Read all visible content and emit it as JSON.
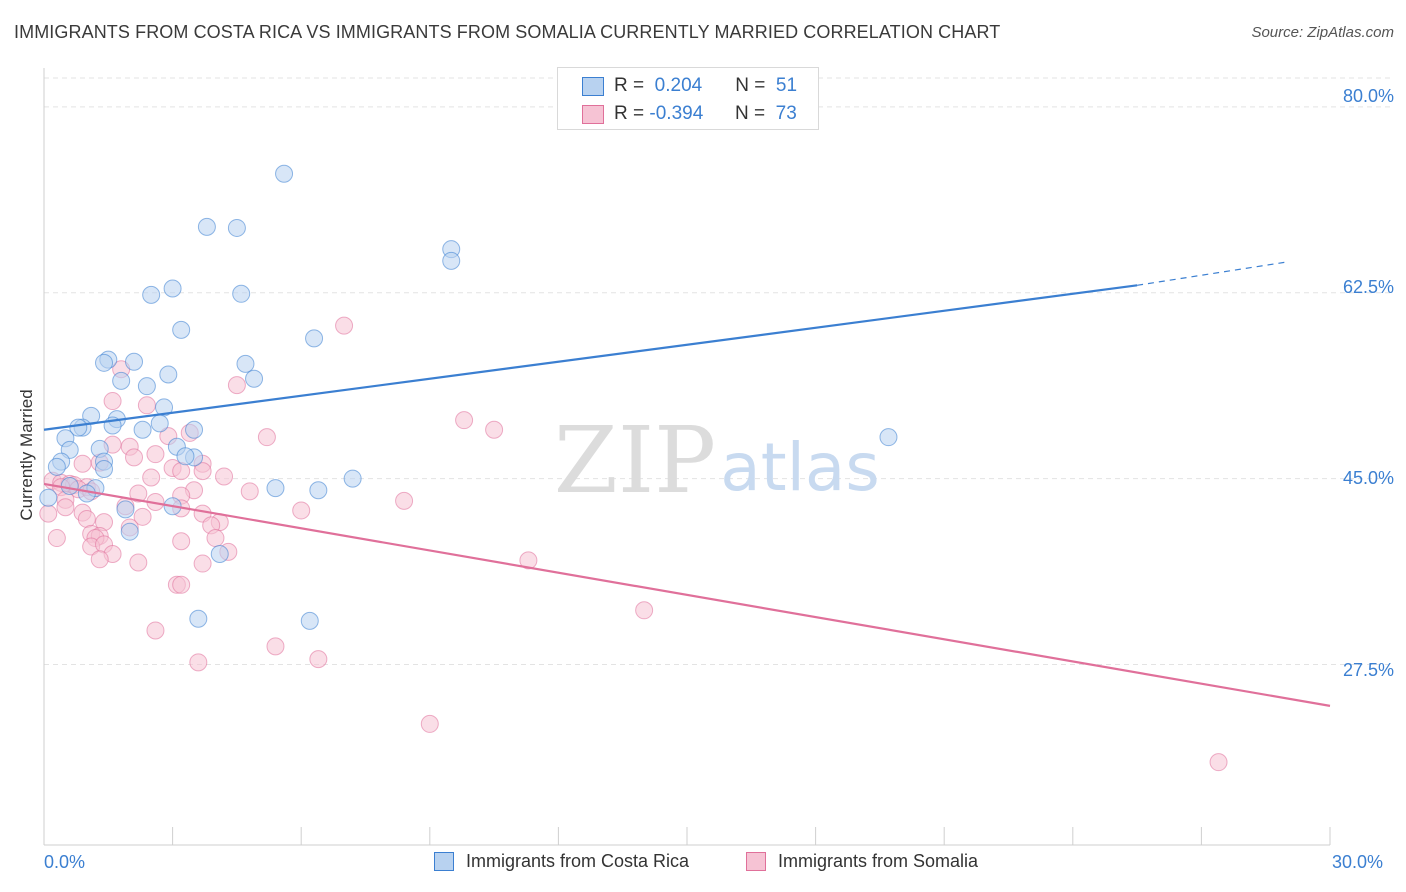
{
  "title": "IMMIGRANTS FROM COSTA RICA VS IMMIGRANTS FROM SOMALIA CURRENTLY MARRIED CORRELATION CHART",
  "source": "Source: ZipAtlas.com",
  "watermark": {
    "zip": "ZIP",
    "atlas": "atlas"
  },
  "colors": {
    "blue": "#3b7fd1",
    "blue_fill": "#b8d2f0",
    "pink": "#e0709a",
    "pink_fill": "#f6c3d4",
    "grid": "#e3e3e3",
    "axis_text": "#3b7fd1"
  },
  "legend": {
    "rows": [
      {
        "r_label": "R =",
        "r_value": "0.204",
        "n_label": "N =",
        "n_value": "51",
        "color": "blue"
      },
      {
        "r_label": "R =",
        "r_value": "-0.394",
        "n_label": "N =",
        "n_value": "73",
        "color": "pink"
      }
    ]
  },
  "bottom_legend": [
    {
      "label": "Immigrants from Costa Rica",
      "color": "blue"
    },
    {
      "label": "Immigrants from Somalia",
      "color": "pink"
    }
  ],
  "chart_data": {
    "type": "scatter",
    "xlabel": "",
    "ylabel": "Currently Married",
    "xlim": [
      0,
      30
    ],
    "ylim": [
      10.5,
      83
    ],
    "x_tick_labels": [
      "0.0%",
      "30.0%"
    ],
    "y_ticks": [
      27.5,
      45.0,
      62.5,
      80.0
    ],
    "y_tick_labels": [
      "27.5%",
      "45.0%",
      "62.5%",
      "80.0%"
    ],
    "grid": true,
    "legend_position": "top-center",
    "series": [
      {
        "name": "Immigrants from Costa Rica",
        "color": "blue",
        "trend": {
          "x": [
            0.0,
            25.5
          ],
          "y": [
            49.6,
            63.2
          ],
          "dashed_to_x": 29.0,
          "dashed_to_y": 65.4
        },
        "points": [
          [
            5.6,
            73.7
          ],
          [
            3.8,
            68.7
          ],
          [
            4.5,
            68.6
          ],
          [
            9.5,
            66.6
          ],
          [
            9.5,
            65.5
          ],
          [
            3.0,
            62.9
          ],
          [
            2.5,
            62.3
          ],
          [
            4.6,
            62.4
          ],
          [
            3.2,
            59.0
          ],
          [
            6.3,
            58.2
          ],
          [
            1.5,
            56.2
          ],
          [
            2.1,
            56.0
          ],
          [
            1.4,
            55.9
          ],
          [
            4.7,
            55.8
          ],
          [
            2.9,
            54.8
          ],
          [
            1.8,
            54.2
          ],
          [
            4.9,
            54.4
          ],
          [
            2.4,
            53.7
          ],
          [
            2.8,
            51.7
          ],
          [
            1.1,
            50.9
          ],
          [
            1.7,
            50.6
          ],
          [
            2.7,
            50.2
          ],
          [
            1.6,
            50.0
          ],
          [
            0.9,
            49.8
          ],
          [
            0.8,
            49.8
          ],
          [
            2.3,
            49.6
          ],
          [
            3.5,
            49.6
          ],
          [
            0.5,
            48.8
          ],
          [
            0.6,
            47.7
          ],
          [
            1.3,
            47.8
          ],
          [
            3.1,
            48.0
          ],
          [
            19.7,
            48.9
          ],
          [
            3.5,
            47.0
          ],
          [
            0.4,
            46.6
          ],
          [
            1.4,
            46.6
          ],
          [
            3.3,
            47.1
          ],
          [
            0.3,
            46.1
          ],
          [
            1.4,
            45.9
          ],
          [
            7.2,
            45.0
          ],
          [
            0.6,
            44.3
          ],
          [
            1.2,
            44.1
          ],
          [
            5.4,
            44.1
          ],
          [
            6.4,
            43.9
          ],
          [
            1.0,
            43.6
          ],
          [
            0.1,
            43.2
          ],
          [
            1.9,
            42.1
          ],
          [
            3.0,
            42.4
          ],
          [
            2.0,
            40.0
          ],
          [
            4.1,
            37.9
          ],
          [
            3.6,
            31.8
          ],
          [
            6.2,
            31.6
          ]
        ]
      },
      {
        "name": "Immigrants from Somalia",
        "color": "pink",
        "trend": {
          "x": [
            0.0,
            30.0
          ],
          "y": [
            44.5,
            23.6
          ]
        },
        "points": [
          [
            7.0,
            59.4
          ],
          [
            1.8,
            55.3
          ],
          [
            4.5,
            53.8
          ],
          [
            1.6,
            52.3
          ],
          [
            2.4,
            51.9
          ],
          [
            9.8,
            50.5
          ],
          [
            10.5,
            49.6
          ],
          [
            3.4,
            49.3
          ],
          [
            2.9,
            49.0
          ],
          [
            5.2,
            48.9
          ],
          [
            1.6,
            48.2
          ],
          [
            2.0,
            48.0
          ],
          [
            2.6,
            47.3
          ],
          [
            0.9,
            46.4
          ],
          [
            1.3,
            46.5
          ],
          [
            2.1,
            47.0
          ],
          [
            3.7,
            46.4
          ],
          [
            3.0,
            46.0
          ],
          [
            3.2,
            45.7
          ],
          [
            3.7,
            45.7
          ],
          [
            2.5,
            45.1
          ],
          [
            4.2,
            45.2
          ],
          [
            0.2,
            44.8
          ],
          [
            0.4,
            44.6
          ],
          [
            0.6,
            44.5
          ],
          [
            0.7,
            44.4
          ],
          [
            0.4,
            44.2
          ],
          [
            1.0,
            44.2
          ],
          [
            0.8,
            44.0
          ],
          [
            3.5,
            43.9
          ],
          [
            4.8,
            43.8
          ],
          [
            1.1,
            43.8
          ],
          [
            2.2,
            43.6
          ],
          [
            3.2,
            43.4
          ],
          [
            0.5,
            43.0
          ],
          [
            2.6,
            42.8
          ],
          [
            8.4,
            42.9
          ],
          [
            0.5,
            42.3
          ],
          [
            1.9,
            42.4
          ],
          [
            3.2,
            42.2
          ],
          [
            6.0,
            42.0
          ],
          [
            0.1,
            41.7
          ],
          [
            0.9,
            41.8
          ],
          [
            3.7,
            41.7
          ],
          [
            2.3,
            41.4
          ],
          [
            1.0,
            41.2
          ],
          [
            1.4,
            40.9
          ],
          [
            4.1,
            40.9
          ],
          [
            3.9,
            40.6
          ],
          [
            2.0,
            40.4
          ],
          [
            1.1,
            39.8
          ],
          [
            1.3,
            39.6
          ],
          [
            0.3,
            39.4
          ],
          [
            1.2,
            39.4
          ],
          [
            4.0,
            39.4
          ],
          [
            3.2,
            39.1
          ],
          [
            1.1,
            38.6
          ],
          [
            1.4,
            38.8
          ],
          [
            1.6,
            37.9
          ],
          [
            4.3,
            38.1
          ],
          [
            1.3,
            37.4
          ],
          [
            2.2,
            37.1
          ],
          [
            3.7,
            37.0
          ],
          [
            11.3,
            37.3
          ],
          [
            3.1,
            35.0
          ],
          [
            3.2,
            35.0
          ],
          [
            14.0,
            32.6
          ],
          [
            2.6,
            30.7
          ],
          [
            5.4,
            29.2
          ],
          [
            6.4,
            28.0
          ],
          [
            3.6,
            27.7
          ],
          [
            9.0,
            21.9
          ],
          [
            27.4,
            18.3
          ]
        ]
      }
    ]
  }
}
